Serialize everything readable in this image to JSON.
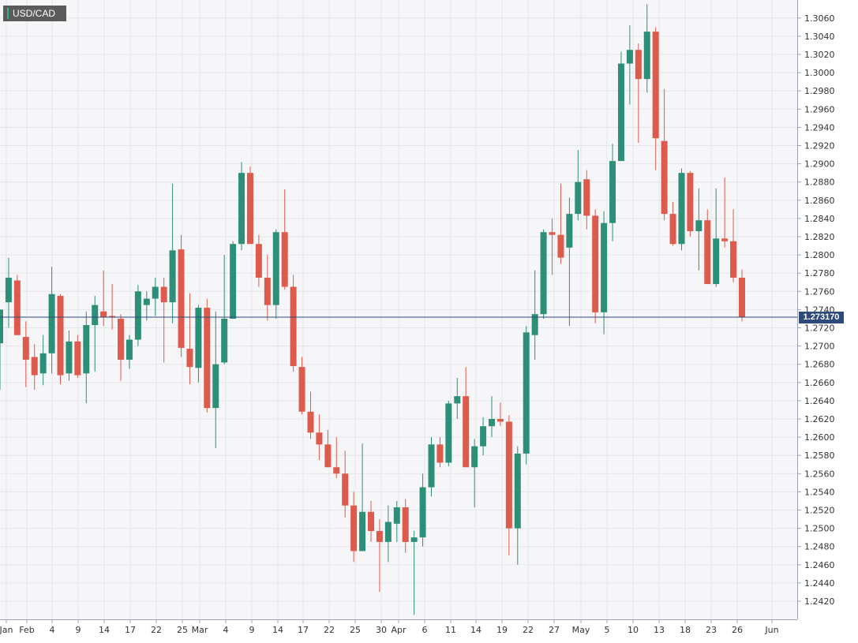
{
  "symbol": "USD/CAD",
  "current_price_label": "1.273170",
  "colors": {
    "up": "#2e8f78",
    "down": "#dd5b4c",
    "price_line": "#2d4a7a",
    "grid": "#e3e6ec",
    "plot_bg": "#f6f6f8",
    "badge": "#5b5b5b",
    "badge_accent": "#2fb47c"
  },
  "chart_data": {
    "type": "candlestick",
    "title": "USD/CAD",
    "x_tick_labels": [
      "Jan",
      "Feb",
      "4",
      "9",
      "14",
      "17",
      "22",
      "25",
      "Mar",
      "4",
      "9",
      "14",
      "17",
      "22",
      "25",
      "30",
      "Apr",
      "6",
      "11",
      "14",
      "19",
      "22",
      "27",
      "May",
      "5",
      "10",
      "13",
      "18",
      "23",
      "26",
      "Jun"
    ],
    "y_tick_labels": [
      "1.2420",
      "1.2440",
      "1.2460",
      "1.2480",
      "1.2500",
      "1.2520",
      "1.2540",
      "1.2560",
      "1.2580",
      "1.2600",
      "1.2620",
      "1.2640",
      "1.2660",
      "1.2680",
      "1.2700",
      "1.2720",
      "1.2740",
      "1.2760",
      "1.2780",
      "1.2800",
      "1.2820",
      "1.2840",
      "1.2860",
      "1.2880",
      "1.2900",
      "1.2920",
      "1.2940",
      "1.2960",
      "1.2980",
      "1.3000",
      "1.3020",
      "1.3040",
      "1.3060"
    ],
    "ylim": [
      1.24,
      1.307
    ],
    "current_price": 1.27317,
    "grid": true,
    "candles": [
      {
        "o": 1.2703,
        "h": 1.274,
        "l": 1.2652,
        "c": 1.274
      },
      {
        "o": 1.2748,
        "h": 1.2797,
        "l": 1.272,
        "c": 1.2775
      },
      {
        "o": 1.2772,
        "h": 1.2778,
        "l": 1.2715,
        "c": 1.2712
      },
      {
        "o": 1.271,
        "h": 1.2727,
        "l": 1.2655,
        "c": 1.2685
      },
      {
        "o": 1.2688,
        "h": 1.2702,
        "l": 1.2652,
        "c": 1.2668
      },
      {
        "o": 1.267,
        "h": 1.2712,
        "l": 1.2657,
        "c": 1.2692
      },
      {
        "o": 1.2692,
        "h": 1.2787,
        "l": 1.267,
        "c": 1.2757
      },
      {
        "o": 1.2755,
        "h": 1.2757,
        "l": 1.2658,
        "c": 1.2668
      },
      {
        "o": 1.267,
        "h": 1.2717,
        "l": 1.2662,
        "c": 1.2705
      },
      {
        "o": 1.2705,
        "h": 1.2712,
        "l": 1.2665,
        "c": 1.2668
      },
      {
        "o": 1.267,
        "h": 1.2738,
        "l": 1.2637,
        "c": 1.2723
      },
      {
        "o": 1.2723,
        "h": 1.2755,
        "l": 1.2672,
        "c": 1.2745
      },
      {
        "o": 1.2738,
        "h": 1.2783,
        "l": 1.2722,
        "c": 1.2732
      },
      {
        "o": 1.2733,
        "h": 1.2768,
        "l": 1.2718,
        "c": 1.2732
      },
      {
        "o": 1.273,
        "h": 1.2735,
        "l": 1.2662,
        "c": 1.2685
      },
      {
        "o": 1.2685,
        "h": 1.2712,
        "l": 1.2675,
        "c": 1.2707
      },
      {
        "o": 1.2707,
        "h": 1.2767,
        "l": 1.27,
        "c": 1.276
      },
      {
        "o": 1.2745,
        "h": 1.276,
        "l": 1.2728,
        "c": 1.2752
      },
      {
        "o": 1.2752,
        "h": 1.2775,
        "l": 1.2733,
        "c": 1.2765
      },
      {
        "o": 1.2765,
        "h": 1.2775,
        "l": 1.2682,
        "c": 1.2748
      },
      {
        "o": 1.2748,
        "h": 1.2878,
        "l": 1.2725,
        "c": 1.2805
      },
      {
        "o": 1.2806,
        "h": 1.2822,
        "l": 1.2688,
        "c": 1.2698
      },
      {
        "o": 1.2697,
        "h": 1.2758,
        "l": 1.2658,
        "c": 1.2677
      },
      {
        "o": 1.2676,
        "h": 1.2745,
        "l": 1.266,
        "c": 1.2742
      },
      {
        "o": 1.2742,
        "h": 1.2752,
        "l": 1.2627,
        "c": 1.2632
      },
      {
        "o": 1.2632,
        "h": 1.2738,
        "l": 1.2588,
        "c": 1.268
      },
      {
        "o": 1.2682,
        "h": 1.28,
        "l": 1.268,
        "c": 1.273
      },
      {
        "o": 1.273,
        "h": 1.2815,
        "l": 1.273,
        "c": 1.2812
      },
      {
        "o": 1.2812,
        "h": 1.2902,
        "l": 1.2805,
        "c": 1.289
      },
      {
        "o": 1.289,
        "h": 1.2897,
        "l": 1.2812,
        "c": 1.2812
      },
      {
        "o": 1.2812,
        "h": 1.2822,
        "l": 1.2765,
        "c": 1.2775
      },
      {
        "o": 1.2775,
        "h": 1.28,
        "l": 1.2728,
        "c": 1.2745
      },
      {
        "o": 1.2745,
        "h": 1.2828,
        "l": 1.273,
        "c": 1.2825
      },
      {
        "o": 1.2825,
        "h": 1.2872,
        "l": 1.2762,
        "c": 1.2765
      },
      {
        "o": 1.2765,
        "h": 1.2778,
        "l": 1.2672,
        "c": 1.2678
      },
      {
        "o": 1.2677,
        "h": 1.2688,
        "l": 1.2625,
        "c": 1.2628
      },
      {
        "o": 1.2628,
        "h": 1.265,
        "l": 1.2598,
        "c": 1.2605
      },
      {
        "o": 1.2605,
        "h": 1.2625,
        "l": 1.2575,
        "c": 1.2592
      },
      {
        "o": 1.2592,
        "h": 1.2608,
        "l": 1.2567,
        "c": 1.2567
      },
      {
        "o": 1.2567,
        "h": 1.26,
        "l": 1.2555,
        "c": 1.256
      },
      {
        "o": 1.256,
        "h": 1.2585,
        "l": 1.2512,
        "c": 1.2525
      },
      {
        "o": 1.2525,
        "h": 1.254,
        "l": 1.2463,
        "c": 1.2475
      },
      {
        "o": 1.2475,
        "h": 1.2593,
        "l": 1.2475,
        "c": 1.2518
      },
      {
        "o": 1.2518,
        "h": 1.253,
        "l": 1.2485,
        "c": 1.2497
      },
      {
        "o": 1.2497,
        "h": 1.251,
        "l": 1.243,
        "c": 1.2485
      },
      {
        "o": 1.2485,
        "h": 1.2525,
        "l": 1.2463,
        "c": 1.2507
      },
      {
        "o": 1.2505,
        "h": 1.253,
        "l": 1.2485,
        "c": 1.2523
      },
      {
        "o": 1.2523,
        "h": 1.2532,
        "l": 1.2473,
        "c": 1.2485
      },
      {
        "o": 1.2485,
        "h": 1.2497,
        "l": 1.2405,
        "c": 1.249
      },
      {
        "o": 1.249,
        "h": 1.256,
        "l": 1.248,
        "c": 1.2545
      },
      {
        "o": 1.2545,
        "h": 1.26,
        "l": 1.2535,
        "c": 1.2592
      },
      {
        "o": 1.2592,
        "h": 1.26,
        "l": 1.2567,
        "c": 1.2572
      },
      {
        "o": 1.2572,
        "h": 1.264,
        "l": 1.2568,
        "c": 1.2637
      },
      {
        "o": 1.2637,
        "h": 1.2665,
        "l": 1.262,
        "c": 1.2645
      },
      {
        "o": 1.2645,
        "h": 1.2677,
        "l": 1.2568,
        "c": 1.2567
      },
      {
        "o": 1.2567,
        "h": 1.2598,
        "l": 1.2523,
        "c": 1.259
      },
      {
        "o": 1.259,
        "h": 1.2622,
        "l": 1.258,
        "c": 1.2612
      },
      {
        "o": 1.2612,
        "h": 1.2645,
        "l": 1.26,
        "c": 1.262
      },
      {
        "o": 1.262,
        "h": 1.2638,
        "l": 1.2612,
        "c": 1.2617
      },
      {
        "o": 1.2617,
        "h": 1.2624,
        "l": 1.247,
        "c": 1.25
      },
      {
        "o": 1.25,
        "h": 1.259,
        "l": 1.246,
        "c": 1.2582
      },
      {
        "o": 1.2582,
        "h": 1.2722,
        "l": 1.257,
        "c": 1.2715
      },
      {
        "o": 1.2712,
        "h": 1.2783,
        "l": 1.2685,
        "c": 1.2735
      },
      {
        "o": 1.2735,
        "h": 1.2828,
        "l": 1.273,
        "c": 1.2825
      },
      {
        "o": 1.2825,
        "h": 1.284,
        "l": 1.2778,
        "c": 1.2822
      },
      {
        "o": 1.2822,
        "h": 1.2878,
        "l": 1.279,
        "c": 1.2797
      },
      {
        "o": 1.2808,
        "h": 1.2863,
        "l": 1.2722,
        "c": 1.2845
      },
      {
        "o": 1.2845,
        "h": 1.2915,
        "l": 1.2838,
        "c": 1.288
      },
      {
        "o": 1.2883,
        "h": 1.2893,
        "l": 1.2828,
        "c": 1.2843
      },
      {
        "o": 1.2843,
        "h": 1.285,
        "l": 1.2725,
        "c": 1.2737
      },
      {
        "o": 1.2737,
        "h": 1.2848,
        "l": 1.2713,
        "c": 1.2835
      },
      {
        "o": 1.2835,
        "h": 1.2922,
        "l": 1.2815,
        "c": 1.2903
      },
      {
        "o": 1.2903,
        "h": 1.3023,
        "l": 1.2903,
        "c": 1.301
      },
      {
        "o": 1.301,
        "h": 1.3052,
        "l": 1.2965,
        "c": 1.3025
      },
      {
        "o": 1.3025,
        "h": 1.3032,
        "l": 1.2923,
        "c": 1.2993
      },
      {
        "o": 1.2993,
        "h": 1.3075,
        "l": 1.2978,
        "c": 1.3045
      },
      {
        "o": 1.3045,
        "h": 1.305,
        "l": 1.2893,
        "c": 1.2928
      },
      {
        "o": 1.2925,
        "h": 1.2982,
        "l": 1.2838,
        "c": 1.2845
      },
      {
        "o": 1.2845,
        "h": 1.2858,
        "l": 1.281,
        "c": 1.2812
      },
      {
        "o": 1.2812,
        "h": 1.2895,
        "l": 1.2805,
        "c": 1.289
      },
      {
        "o": 1.289,
        "h": 1.2892,
        "l": 1.282,
        "c": 1.2826
      },
      {
        "o": 1.2826,
        "h": 1.2873,
        "l": 1.2783,
        "c": 1.2838
      },
      {
        "o": 1.2838,
        "h": 1.285,
        "l": 1.2768,
        "c": 1.2768
      },
      {
        "o": 1.2768,
        "h": 1.2873,
        "l": 1.2765,
        "c": 1.2818
      },
      {
        "o": 1.2818,
        "h": 1.2885,
        "l": 1.2808,
        "c": 1.2815
      },
      {
        "o": 1.2815,
        "h": 1.285,
        "l": 1.277,
        "c": 1.2775
      },
      {
        "o": 1.2775,
        "h": 1.2784,
        "l": 1.2727,
        "c": 1.2732
      }
    ]
  }
}
